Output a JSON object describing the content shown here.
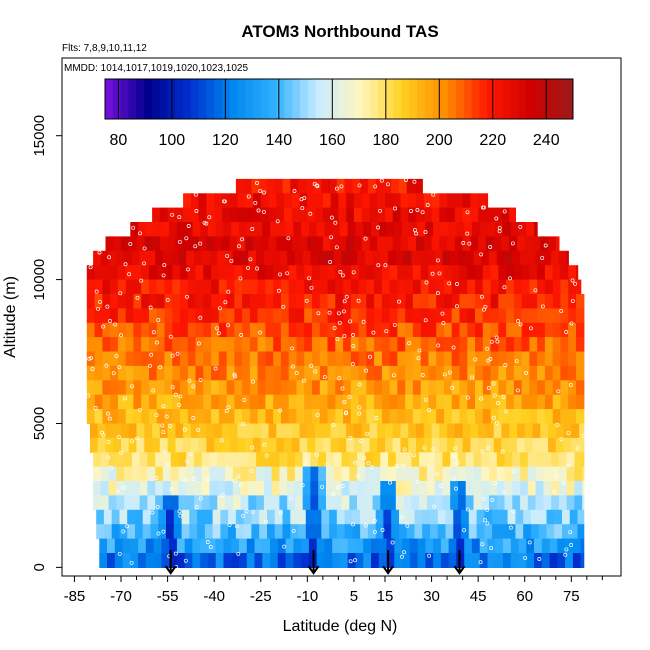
{
  "chart_data": {
    "type": "heatmap",
    "title": "ATOM3 Northbound TAS",
    "subtitle_flights": "Flts: 7,8,9,10,11,12",
    "subtitle_dates": "MMDD: 1014,1017,1019,1020,1023,1025",
    "xlabel": "Latitude (deg N)",
    "ylabel": "Altitude (m)",
    "xlim": [
      -85,
      85
    ],
    "ylim": [
      0,
      17500
    ],
    "x_ticks": [
      -85,
      -70,
      -55,
      -40,
      -25,
      -10,
      5,
      15,
      30,
      45,
      60,
      75
    ],
    "y_ticks": [
      0,
      5000,
      10000,
      15000
    ],
    "colorbar": {
      "ticks": [
        80,
        100,
        120,
        140,
        160,
        180,
        200,
        220,
        240
      ],
      "range": [
        75,
        250
      ],
      "colors": [
        "#7a10e0",
        "#00008c",
        "#0030d0",
        "#0088f0",
        "#30b0ff",
        "#c8ecff",
        "#fff6c0",
        "#ffd020",
        "#ff8c00",
        "#ff1800",
        "#d00000",
        "#9c1a1a"
      ]
    },
    "profile_arrows_lat": [
      -54,
      -8,
      16,
      39
    ],
    "altitude_bins": [
      {
        "alt": 13000,
        "lat_range": [
          -33,
          27
        ],
        "tas": 222
      },
      {
        "alt": 12500,
        "lat_range": [
          -50,
          48
        ],
        "tas": 224
      },
      {
        "alt": 12000,
        "lat_range": [
          -60,
          57
        ],
        "tas": 226
      },
      {
        "alt": 11500,
        "lat_range": [
          -67,
          64
        ],
        "tas": 228
      },
      {
        "alt": 11000,
        "lat_range": [
          -75,
          71
        ],
        "tas": 229
      },
      {
        "alt": 10500,
        "lat_range": [
          -79,
          74
        ],
        "tas": 230
      },
      {
        "alt": 10000,
        "lat_range": [
          -81,
          77
        ],
        "tas": 226
      },
      {
        "alt": 9500,
        "lat_range": [
          -81,
          78
        ],
        "tas": 222
      },
      {
        "alt": 9000,
        "lat_range": [
          -81,
          79
        ],
        "tas": 220
      },
      {
        "alt": 8500,
        "lat_range": [
          -81,
          79
        ],
        "tas": 216
      },
      {
        "alt": 8000,
        "lat_range": [
          -81,
          79
        ],
        "tas": 212
      },
      {
        "alt": 7500,
        "lat_range": [
          -81,
          79
        ],
        "tas": 208
      },
      {
        "alt": 7000,
        "lat_range": [
          -81,
          79
        ],
        "tas": 205
      },
      {
        "alt": 6500,
        "lat_range": [
          -81,
          79
        ],
        "tas": 202
      },
      {
        "alt": 6000,
        "lat_range": [
          -81,
          79
        ],
        "tas": 199
      },
      {
        "alt": 5500,
        "lat_range": [
          -81,
          79
        ],
        "tas": 196
      },
      {
        "alt": 5000,
        "lat_range": [
          -81,
          79
        ],
        "tas": 192
      },
      {
        "alt": 4500,
        "lat_range": [
          -80,
          79
        ],
        "tas": 188
      },
      {
        "alt": 4000,
        "lat_range": [
          -80,
          79
        ],
        "tas": 184
      },
      {
        "alt": 3500,
        "lat_range": [
          -79,
          79
        ],
        "tas": 180
      },
      {
        "alt": 3000,
        "lat_range": [
          -79,
          79
        ],
        "tas": 170
      },
      {
        "alt": 2500,
        "lat_range": [
          -79,
          79
        ],
        "tas": 162
      },
      {
        "alt": 2000,
        "lat_range": [
          -79,
          79
        ],
        "tas": 154
      },
      {
        "alt": 1500,
        "lat_range": [
          -78,
          79
        ],
        "tas": 148
      },
      {
        "alt": 1000,
        "lat_range": [
          -78,
          79
        ],
        "tas": 140
      },
      {
        "alt": 500,
        "lat_range": [
          -77,
          79
        ],
        "tas": 130
      },
      {
        "alt": 0,
        "lat_range": [
          -77,
          79
        ],
        "tas": 118
      }
    ],
    "slow_spots": [
      {
        "lat": -54,
        "alt": 700,
        "tas": 95
      },
      {
        "lat": -8,
        "alt": 1500,
        "tas": 100
      },
      {
        "lat": 16,
        "alt": 1000,
        "tas": 100
      },
      {
        "lat": 39,
        "alt": 1000,
        "tas": 100
      }
    ]
  }
}
